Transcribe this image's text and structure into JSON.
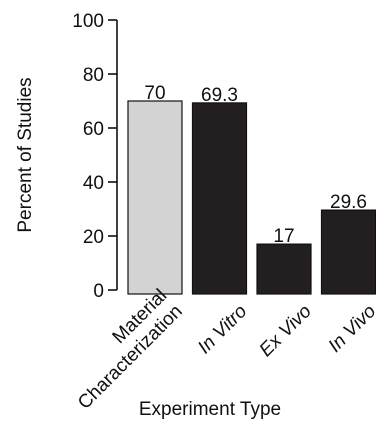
{
  "chart_data": {
    "type": "bar",
    "categories": [
      "Material Characterization",
      "In Vitro",
      "Ex Vivo",
      "In Vivo"
    ],
    "category_lines": [
      [
        "Material",
        "Characterization"
      ],
      [
        "In Vitro"
      ],
      [
        "Ex Vivo"
      ],
      [
        "In Vivo"
      ]
    ],
    "category_italic": [
      false,
      true,
      true,
      true
    ],
    "values": [
      70,
      69.3,
      17,
      29.6
    ],
    "value_labels": [
      "70",
      "69.3",
      "17",
      "29.6"
    ],
    "bar_colors": [
      "#d3d3d3",
      "#231f20",
      "#231f20",
      "#231f20"
    ],
    "xlabel": "Experiment Type",
    "ylabel": "Percent of Studies",
    "ylim": [
      0,
      100
    ],
    "yticks": [
      0,
      20,
      40,
      60,
      80,
      100
    ],
    "grid": false,
    "legend": "none"
  }
}
